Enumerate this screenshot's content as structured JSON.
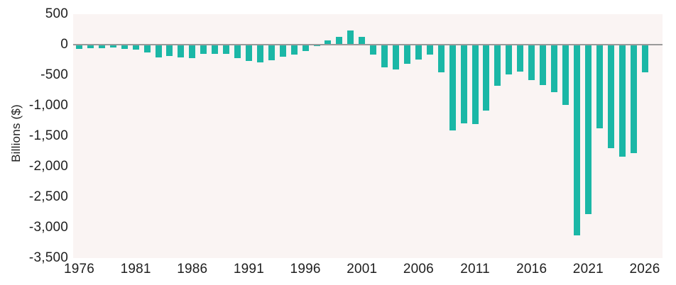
{
  "chart_data": {
    "type": "bar",
    "title": "",
    "xlabel": "",
    "ylabel": "Billions ($)",
    "x": [
      1976,
      1977,
      1978,
      1979,
      1980,
      1981,
      1982,
      1983,
      1984,
      1985,
      1986,
      1987,
      1988,
      1989,
      1990,
      1991,
      1992,
      1993,
      1994,
      1995,
      1996,
      1997,
      1998,
      1999,
      2000,
      2001,
      2002,
      2003,
      2004,
      2005,
      2006,
      2007,
      2008,
      2009,
      2010,
      2011,
      2012,
      2013,
      2014,
      2015,
      2016,
      2017,
      2018,
      2019,
      2020,
      2021,
      2022,
      2023,
      2024,
      2025,
      2026
    ],
    "values": [
      -73.7,
      -53.7,
      -59.2,
      -40.7,
      -73.8,
      -79.0,
      -128.0,
      -207.8,
      -185.4,
      -212.3,
      -221.2,
      -149.7,
      -155.2,
      -152.6,
      -221.0,
      -269.2,
      -290.3,
      -255.1,
      -203.2,
      -164.0,
      -107.4,
      -21.9,
      69.3,
      125.6,
      236.2,
      128.2,
      -157.8,
      -377.6,
      -412.7,
      -318.3,
      -248.2,
      -160.7,
      -458.6,
      -1412.7,
      -1294.4,
      -1299.6,
      -1087.0,
      -679.5,
      -484.6,
      -441.9,
      -584.7,
      -665.4,
      -779.0,
      -984.2,
      -3131.9,
      -2775.3,
      -1375.4,
      -1695.2,
      -1833.8,
      -1775.0,
      -450.0
    ],
    "ylim": [
      -3500,
      500
    ],
    "yticks": [
      500,
      0,
      -500,
      -1000,
      -1500,
      -2000,
      -2500,
      -3000,
      -3500
    ],
    "ytick_labels": [
      "500",
      "0",
      "-500",
      "-1,000",
      "-1,500",
      "-2,000",
      "-2,500",
      "-3,000",
      "-3,500"
    ],
    "xticks": [
      1976,
      1981,
      1986,
      1991,
      1996,
      2001,
      2006,
      2011,
      2016,
      2021,
      2026
    ],
    "xtick_labels": [
      "1976",
      "1981",
      "1986",
      "1991",
      "1996",
      "2001",
      "2006",
      "2011",
      "2016",
      "2021",
      "2026"
    ],
    "grid": false,
    "legend": null,
    "colors": {
      "bar": "#1bb7a6",
      "plot_background": "#faf4f3",
      "zero_line": "#9a9a9a",
      "text": "#1f1f1f",
      "page_background": "#ffffff"
    }
  }
}
